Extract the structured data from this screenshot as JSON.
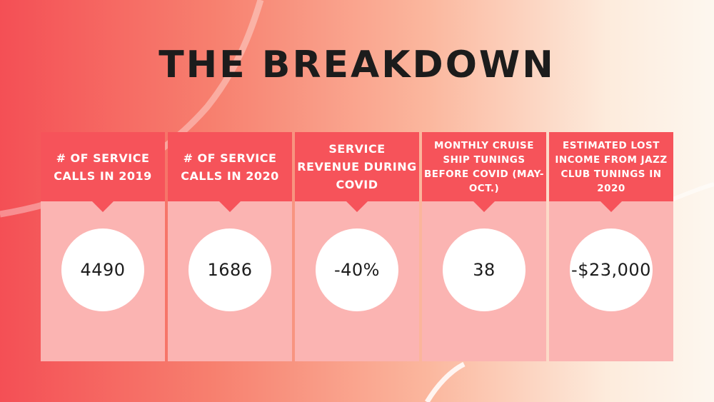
{
  "title": "THE BREAKDOWN",
  "colors": {
    "header": "#f6535a",
    "panel": "#fbb4b2",
    "circle": "#ffffff",
    "title": "#1c1c1c",
    "background_start": "#f44f55",
    "background_end": "#fdf7ef"
  },
  "stats": [
    {
      "label": "# OF SERVICE CALLS IN 2019",
      "value": "4490"
    },
    {
      "label": "# OF SERVICE CALLS IN 2020",
      "value": "1686"
    },
    {
      "label": "SERVICE REVENUE DURING COVID",
      "value": "-40%"
    },
    {
      "label": "MONTHLY CRUISE SHIP TUNINGS BEFORE COVID (MAY-OCT.)",
      "value": "38"
    },
    {
      "label": "ESTIMATED LOST INCOME FROM JAZZ CLUB TUNINGS IN 2020",
      "value": "-$23,000"
    }
  ]
}
